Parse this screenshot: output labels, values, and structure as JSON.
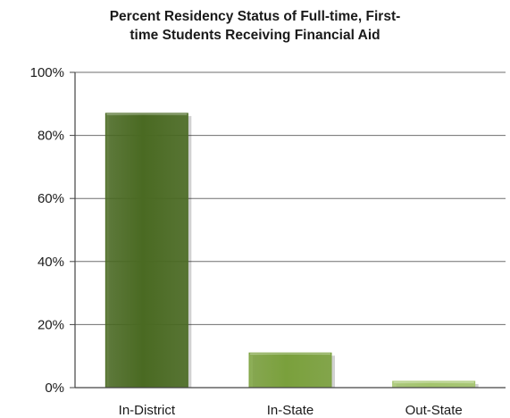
{
  "chart_data": {
    "type": "bar",
    "title_lines": [
      "Percent Residency Status of Full-time, First-",
      "time Students Receiving Financial Aid"
    ],
    "categories": [
      "In-District",
      "In-State",
      "Out-State"
    ],
    "values": [
      87,
      11,
      2
    ],
    "bar_colors": [
      "#4a6a22",
      "#7aa03c",
      "#a3c46c"
    ],
    "ylim": [
      0,
      100
    ],
    "yticks": [
      {
        "value": 0,
        "label": "0%"
      },
      {
        "value": 20,
        "label": "20%"
      },
      {
        "value": 40,
        "label": "40%"
      },
      {
        "value": 60,
        "label": "60%"
      },
      {
        "value": 80,
        "label": "80%"
      },
      {
        "value": 100,
        "label": "100%"
      }
    ],
    "grid": true,
    "xlabel": "",
    "ylabel": ""
  }
}
